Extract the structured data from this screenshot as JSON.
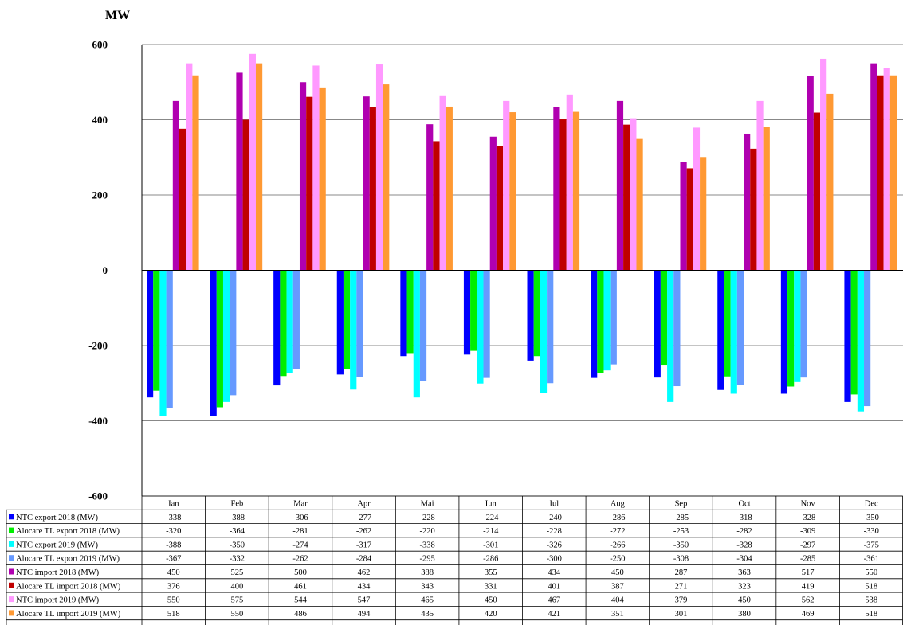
{
  "chart_data": {
    "type": "bar",
    "ylabel": "MW",
    "ylim": [
      -600,
      600
    ],
    "yticks": [
      600,
      400,
      200,
      0,
      -200,
      -400,
      -600
    ],
    "ytick_labels": [
      "600",
      "400",
      "200",
      "0",
      "-200",
      "-400",
      "-600"
    ],
    "grid": true,
    "legend": "data-table-below",
    "categories": [
      "Ian",
      "Feb",
      "Mar",
      "Apr",
      "Mai",
      "Iun",
      "Iul",
      "Aug",
      "Sep",
      "Oct",
      "Nov",
      "Dec"
    ],
    "series": [
      {
        "name": "NTC export 2018 (MW)",
        "color": "#0000ff",
        "values": [
          -338,
          -388,
          -306,
          -277,
          -228,
          -224,
          -240,
          -286,
          -285,
          -318,
          -328,
          -350
        ]
      },
      {
        "name": "Alocare TL export 2018 (MW)",
        "color": "#00ee00",
        "values": [
          -320,
          -364,
          -281,
          -262,
          -220,
          -214,
          -228,
          -272,
          -253,
          -282,
          -309,
          -330
        ]
      },
      {
        "name": "NTC export 2019 (MW)",
        "color": "#00ffff",
        "values": [
          -388,
          -350,
          -274,
          -317,
          -338,
          -301,
          -326,
          -266,
          -350,
          -328,
          -297,
          -375
        ]
      },
      {
        "name": "Alocare TL export 2019 (MW)",
        "color": "#6699ff",
        "values": [
          -367,
          -332,
          -262,
          -284,
          -295,
          -286,
          -300,
          -250,
          -308,
          -304,
          -285,
          -361
        ]
      },
      {
        "name": "NTC import 2018 (MW)",
        "color": "#b000b0",
        "values": [
          450,
          525,
          500,
          462,
          388,
          355,
          434,
          450,
          287,
          363,
          517,
          550
        ]
      },
      {
        "name": "Alocare TL import 2018 (MW)",
        "color": "#c00000",
        "values": [
          376,
          400,
          461,
          434,
          343,
          331,
          401,
          387,
          271,
          323,
          419,
          518
        ]
      },
      {
        "name": "NTC import 2019 (MW)",
        "color": "#ff99ff",
        "values": [
          550,
          575,
          544,
          547,
          465,
          450,
          467,
          404,
          379,
          450,
          562,
          538
        ]
      },
      {
        "name": "Alocare TL import 2019 (MW)",
        "color": "#ff9933",
        "values": [
          518,
          550,
          486,
          494,
          435,
          420,
          421,
          351,
          301,
          380,
          469,
          518
        ]
      }
    ]
  }
}
